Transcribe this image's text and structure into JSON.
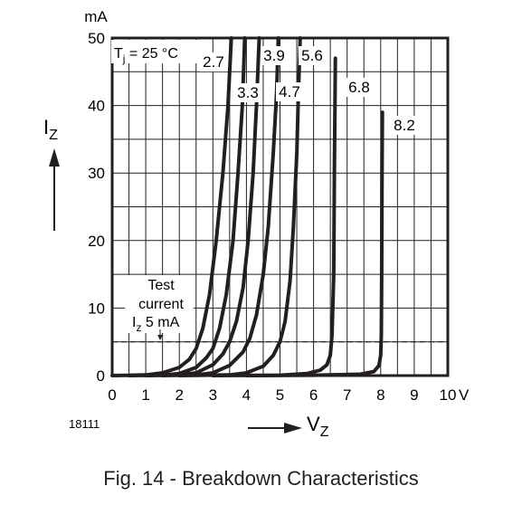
{
  "chart_data": {
    "type": "line",
    "title": "",
    "xlabel": "V",
    "xlabel_sub": "Z",
    "ylabel": "I",
    "ylabel_sub": "Z",
    "y_unit": "mA",
    "x_unit": "V",
    "xlim": [
      0,
      10
    ],
    "ylim": [
      0,
      50
    ],
    "grid": true,
    "x_ticks": [
      "0",
      "1",
      "2",
      "3",
      "4",
      "5",
      "6",
      "7",
      "8",
      "9",
      "10"
    ],
    "y_ticks": [
      "0",
      "10",
      "20",
      "30",
      "40",
      "50"
    ],
    "condition": {
      "prefix": "T",
      "sub": "j",
      "suffix": " = 25 °C"
    },
    "test_current": {
      "line1": "Test",
      "line2": "current",
      "prefix": "I",
      "sub": "z",
      "suffix": " 5 mA",
      "value_mA": 5
    },
    "series": [
      {
        "name": "2.7",
        "points": [
          [
            0,
            0
          ],
          [
            1,
            0.1
          ],
          [
            1.5,
            0.4
          ],
          [
            2,
            1.2
          ],
          [
            2.3,
            2.4
          ],
          [
            2.5,
            4
          ],
          [
            2.7,
            7
          ],
          [
            2.9,
            12
          ],
          [
            3.1,
            20
          ],
          [
            3.3,
            30
          ],
          [
            3.45,
            40
          ],
          [
            3.55,
            50
          ]
        ]
      },
      {
        "name": "3.3",
        "points": [
          [
            0.5,
            0
          ],
          [
            1.5,
            0.05
          ],
          [
            2,
            0.3
          ],
          [
            2.5,
            1.2
          ],
          [
            2.8,
            2.6
          ],
          [
            3,
            4
          ],
          [
            3.2,
            7
          ],
          [
            3.4,
            12
          ],
          [
            3.6,
            20
          ],
          [
            3.75,
            30
          ],
          [
            3.88,
            40
          ],
          [
            3.95,
            50
          ]
        ]
      },
      {
        "name": "3.9",
        "points": [
          [
            1,
            0
          ],
          [
            2,
            0.1
          ],
          [
            2.5,
            0.4
          ],
          [
            3,
            1.6
          ],
          [
            3.3,
            3.2
          ],
          [
            3.5,
            5
          ],
          [
            3.7,
            8
          ],
          [
            3.9,
            13
          ],
          [
            4.05,
            20
          ],
          [
            4.2,
            30
          ],
          [
            4.3,
            40
          ],
          [
            4.38,
            50
          ]
        ]
      },
      {
        "name": "4.7",
        "points": [
          [
            1.5,
            0
          ],
          [
            2.5,
            0.1
          ],
          [
            3,
            0.4
          ],
          [
            3.5,
            1.5
          ],
          [
            3.9,
            3.5
          ],
          [
            4.1,
            5.5
          ],
          [
            4.3,
            9
          ],
          [
            4.5,
            15
          ],
          [
            4.65,
            22
          ],
          [
            4.8,
            33
          ],
          [
            4.9,
            42
          ],
          [
            4.95,
            50
          ]
        ]
      },
      {
        "name": "5.6",
        "points": [
          [
            2,
            0
          ],
          [
            3.5,
            0.1
          ],
          [
            4,
            0.4
          ],
          [
            4.5,
            1.4
          ],
          [
            4.8,
            3
          ],
          [
            5,
            5
          ],
          [
            5.15,
            8
          ],
          [
            5.3,
            14
          ],
          [
            5.4,
            22
          ],
          [
            5.5,
            33
          ],
          [
            5.55,
            42
          ],
          [
            5.6,
            50
          ]
        ]
      },
      {
        "name": "6.8",
        "points": [
          [
            3,
            0
          ],
          [
            5,
            0.05
          ],
          [
            5.8,
            0.3
          ],
          [
            6.2,
            0.8
          ],
          [
            6.4,
            1.6
          ],
          [
            6.5,
            3
          ],
          [
            6.55,
            6
          ],
          [
            6.6,
            15
          ],
          [
            6.62,
            30
          ],
          [
            6.65,
            47
          ]
        ]
      },
      {
        "name": "8.2",
        "points": [
          [
            4,
            0
          ],
          [
            6,
            0.05
          ],
          [
            7.4,
            0.2
          ],
          [
            7.8,
            0.6
          ],
          [
            7.95,
            1.5
          ],
          [
            8,
            3
          ],
          [
            8.02,
            6
          ],
          [
            8.03,
            15
          ],
          [
            8.04,
            30
          ],
          [
            8.05,
            39
          ]
        ]
      }
    ],
    "series_labels": [
      "2.7",
      "3.3",
      "3.9",
      "4.7",
      "5.6",
      "6.8",
      "8.2"
    ]
  },
  "figure_id": "18111",
  "caption": "Fig. 14 - Breakdown Characteristics"
}
